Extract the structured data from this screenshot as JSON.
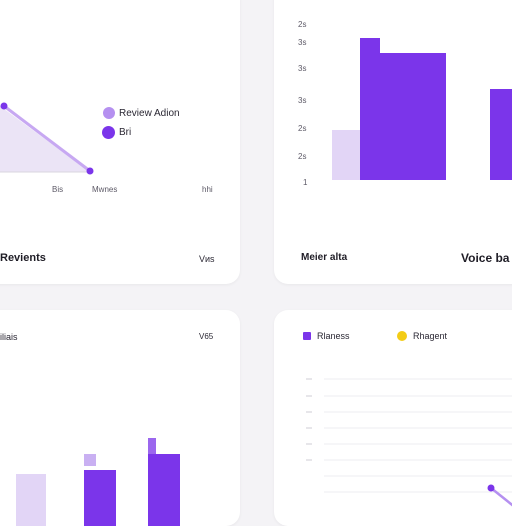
{
  "colors": {
    "purple": "#7b35ea",
    "light_purple": "#e2d5f6",
    "mid_purple": "#b590f0",
    "yellow": "#f3cc16",
    "grid": "#ededf1"
  },
  "cards": {
    "top_left": {
      "footer_left": "Revients",
      "footer_right": "Vиs",
      "x_ticks": [
        "Bis",
        "Mwnes",
        "hhi"
      ]
    },
    "top_right": {
      "footer_left": "Meier alta",
      "footer_right": "Voice ba",
      "y_ticks": [
        "2s",
        "3s",
        "3s",
        "3s",
        "2s",
        "2s",
        "1"
      ]
    },
    "bottom_left": {
      "header_left": "iliais",
      "header_right": "V65"
    },
    "bottom_right": {
      "y_ticks": [
        "",
        "",
        "",
        "",
        "",
        ""
      ]
    }
  },
  "chart_data": [
    {
      "type": "area",
      "series": [
        {
          "name": "Review Adion",
          "color": "#b590f0"
        },
        {
          "name": "Bri",
          "color": "#7b35ea"
        }
      ],
      "x": [
        0,
        1
      ],
      "y": [
        2,
        0
      ],
      "xlabel": "",
      "ylabel": ""
    },
    {
      "type": "bar",
      "categories": [
        "",
        "",
        ""
      ],
      "series": [
        {
          "values": [
            1.8,
            5.0,
            null
          ],
          "color": "#e2d5f6"
        },
        {
          "values": [
            null,
            4.6,
            3.2
          ],
          "color": "#7b35ea"
        }
      ]
    },
    {
      "type": "bar",
      "categories": [
        "",
        "",
        ""
      ],
      "series": [
        {
          "values": [
            1.2,
            1.4,
            2.4
          ],
          "color": "#7b35ea"
        }
      ]
    },
    {
      "type": "line",
      "series": [
        {
          "name": "Rlaness",
          "color": "#7b35ea"
        },
        {
          "name": "Rhagent",
          "color": "#f3cc16"
        }
      ],
      "x": [
        0,
        1
      ],
      "y": [
        1.0,
        0.0
      ]
    }
  ]
}
